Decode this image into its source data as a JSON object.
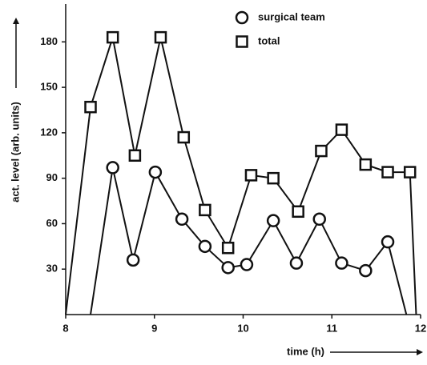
{
  "chart_data": {
    "type": "line",
    "x_label": "time (h)",
    "y_label": "act. level (arb. units)",
    "xlim": [
      8,
      12
    ],
    "xticks": [
      8,
      9,
      10,
      11,
      12
    ],
    "ylim": [
      0,
      205
    ],
    "yticks": [
      30,
      60,
      90,
      120,
      150,
      180
    ],
    "legend": "top",
    "series": [
      {
        "name": "surgical team",
        "marker": "circle",
        "color": "#111111",
        "x": [
          8.28,
          8.53,
          8.76,
          9.01,
          9.31,
          9.57,
          9.83,
          10.04,
          10.34,
          10.6,
          10.86,
          11.11,
          11.38,
          11.63,
          11.84
        ],
        "values": [
          0,
          97,
          36,
          94,
          63,
          45,
          31,
          33,
          62,
          34,
          63,
          34,
          29,
          48,
          0
        ]
      },
      {
        "name": "total",
        "marker": "square",
        "color": "#111111",
        "x": [
          8,
          8.28,
          8.53,
          8.78,
          9.07,
          9.33,
          9.57,
          9.83,
          10.09,
          10.34,
          10.62,
          10.88,
          11.11,
          11.38,
          11.63,
          11.88,
          11.95
        ],
        "values": [
          0,
          137,
          183,
          105,
          183,
          117,
          69,
          44,
          92,
          90,
          68,
          108,
          122,
          99,
          94,
          94,
          0
        ]
      }
    ]
  }
}
